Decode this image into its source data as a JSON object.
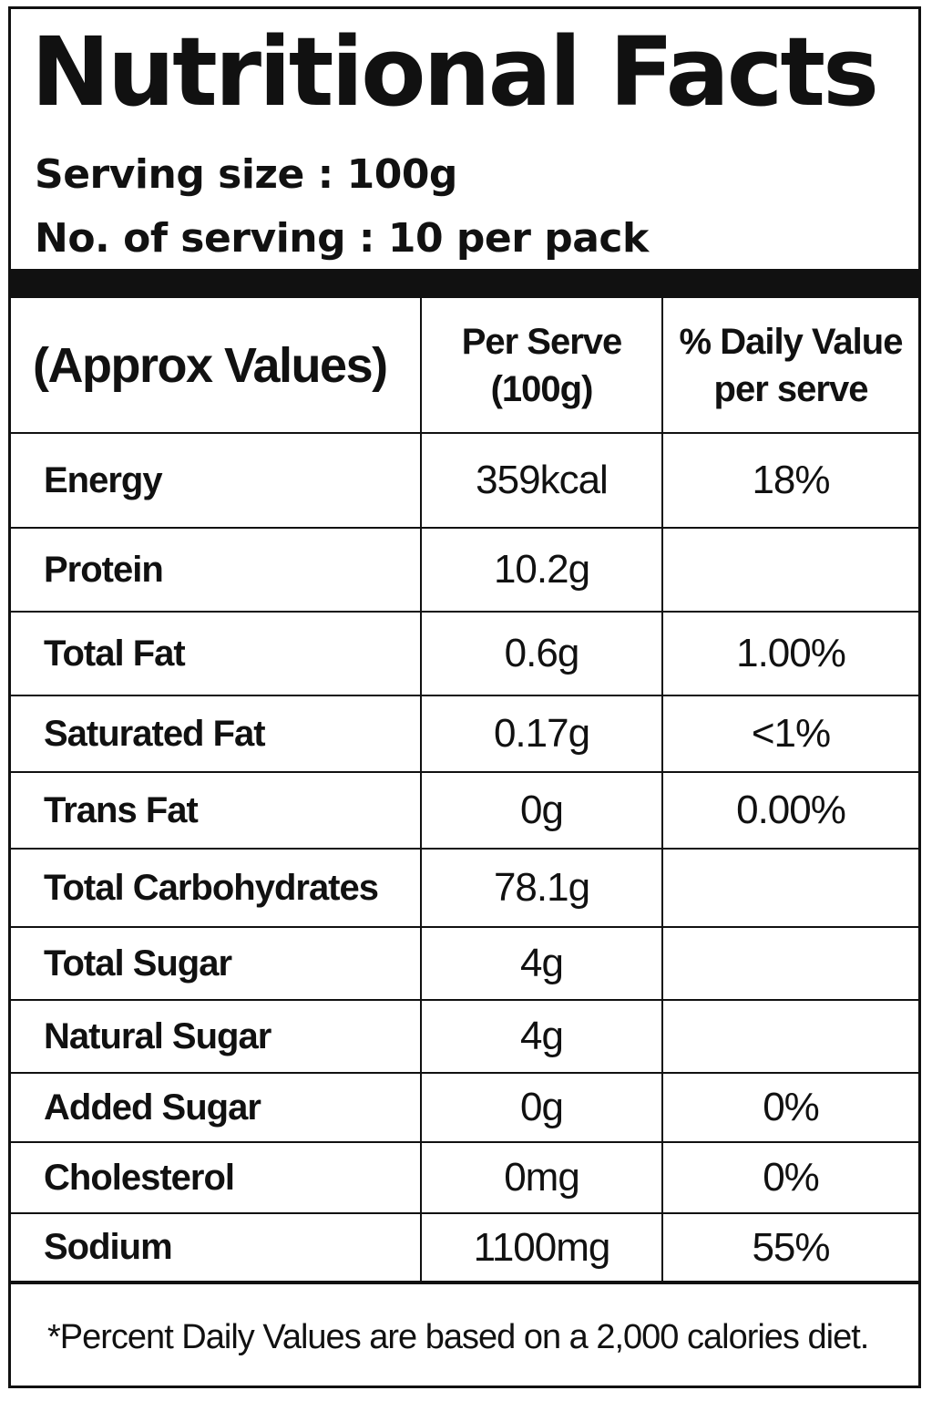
{
  "header": {
    "title": "Nutritional Facts",
    "serving_size": "Serving size : 100g",
    "servings_per_pack": "No. of serving : 10 per pack"
  },
  "table": {
    "columns": [
      "(Approx Values)",
      "Per Serve",
      "(100g)",
      "% Daily Value",
      "per serve"
    ],
    "rows": [
      {
        "nutrient": "Energy",
        "per_serve": "359kcal",
        "daily_value": "18%"
      },
      {
        "nutrient": "Protein",
        "per_serve": "10.2g",
        "daily_value": ""
      },
      {
        "nutrient": "Total Fat",
        "per_serve": "0.6g",
        "daily_value": "1.00%"
      },
      {
        "nutrient": "Saturated Fat",
        "per_serve": "0.17g",
        "daily_value": "<1%"
      },
      {
        "nutrient": "Trans Fat",
        "per_serve": "0g",
        "daily_value": "0.00%"
      },
      {
        "nutrient": "Total Carbohydrates",
        "per_serve": "78.1g",
        "daily_value": ""
      },
      {
        "nutrient": "Total Sugar",
        "per_serve": "4g",
        "daily_value": ""
      },
      {
        "nutrient": "Natural Sugar",
        "per_serve": "4g",
        "daily_value": ""
      },
      {
        "nutrient": "Added Sugar",
        "per_serve": "0g",
        "daily_value": "0%"
      },
      {
        "nutrient": "Cholesterol",
        "per_serve": "0mg",
        "daily_value": "0%"
      },
      {
        "nutrient": "Sodium",
        "per_serve": "1100mg",
        "daily_value": "55%"
      }
    ]
  },
  "footnote": "*Percent Daily Values are based on a 2,000 calories diet."
}
